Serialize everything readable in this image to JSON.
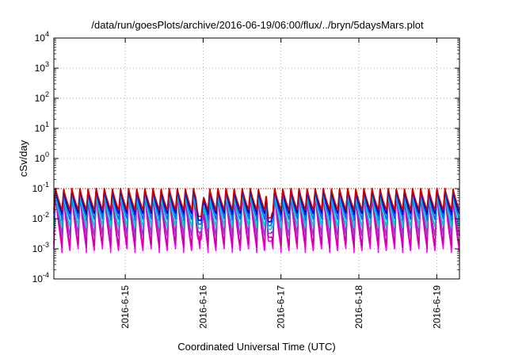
{
  "chart_data": {
    "type": "line",
    "title": "/data/run/goesPlots/archive/2016-06-19/06:00/flux/../bryn/5daysMars.plot",
    "xlabel": "Coordinated Universal Time (UTC)",
    "ylabel": "cSv/day",
    "yscale": "log",
    "ylim": [
      0.0001,
      10000
    ],
    "y_ticks": [
      {
        "base": "10",
        "exp": "-4"
      },
      {
        "base": "10",
        "exp": "-3"
      },
      {
        "base": "10",
        "exp": "-2"
      },
      {
        "base": "10",
        "exp": "-1"
      },
      {
        "base": "10",
        "exp": "0"
      },
      {
        "base": "10",
        "exp": "1"
      },
      {
        "base": "10",
        "exp": "2"
      },
      {
        "base": "10",
        "exp": "3"
      },
      {
        "base": "10",
        "exp": "4"
      }
    ],
    "xlim": [
      "2016-06-14 02:00",
      "2016-06-19 07:00"
    ],
    "x_ticks": [
      "2016-6-15",
      "2016-6-16",
      "2016-6-17",
      "2016-6-18",
      "2016-6-19"
    ],
    "grid": true,
    "reference_line": 0.1,
    "pattern": {
      "period_hours": 2.5,
      "peak": 0.1,
      "dips": [
        {
          "time": "2016-06-15 23:00",
          "min": 0.002
        },
        {
          "time": "2016-06-16 20:30",
          "min": 0.0018
        }
      ]
    },
    "series": [
      {
        "color": "#ff00ff",
        "peak": 0.08,
        "trough": 0.001
      },
      {
        "color": "#cc0099",
        "peak": 0.085,
        "trough": 0.0014
      },
      {
        "color": "#9933cc",
        "peak": 0.09,
        "trough": 0.003
      },
      {
        "color": "#00cccc",
        "peak": 0.07,
        "trough": 0.006
      },
      {
        "color": "#0066ff",
        "peak": 0.095,
        "trough": 0.01
      },
      {
        "color": "#0000cc",
        "peak": 0.1,
        "trough": 0.015
      },
      {
        "color": "#cc0000",
        "peak": 0.11,
        "trough": 0.02
      }
    ]
  }
}
